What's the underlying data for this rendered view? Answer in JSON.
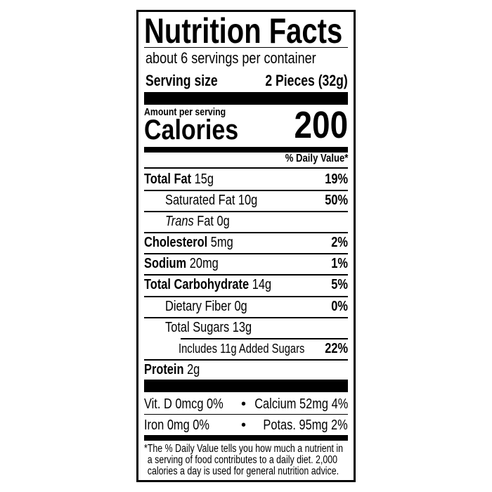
{
  "title": "Nutrition Facts",
  "servings_per_container": "about 6 servings per container",
  "serving_size": {
    "label": "Serving size",
    "value": "2 Pieces (32g)"
  },
  "amount_per_serving": "Amount per serving",
  "calories": {
    "label": "Calories",
    "value": "200"
  },
  "daily_value_header": "% Daily Value*",
  "nutrients": [
    {
      "name": "Total Fat",
      "amount": "15g",
      "dv": "19%"
    },
    {
      "name": "Saturated Fat",
      "amount": "10g",
      "dv": "50%"
    },
    {
      "name": "Trans",
      "name_suffix": "Fat",
      "amount": "0g",
      "dv": ""
    },
    {
      "name": "Cholesterol",
      "amount": "5mg",
      "dv": "2%"
    },
    {
      "name": "Sodium",
      "amount": "20mg",
      "dv": "1%"
    },
    {
      "name": "Total Carbohydrate",
      "amount": "14g",
      "dv": "5%"
    },
    {
      "name": "Dietary Fiber",
      "amount": "0g",
      "dv": "0%"
    },
    {
      "name": "Total Sugars",
      "amount": "13g",
      "dv": ""
    },
    {
      "name": "Includes 11g Added Sugars",
      "amount": "",
      "dv": "22%"
    },
    {
      "name": "Protein",
      "amount": "2g",
      "dv": ""
    }
  ],
  "micronutrients": [
    {
      "left": "Vit. D 0mcg 0%",
      "right": "Calcium 52mg 4%"
    },
    {
      "left": "Iron 0mg 0%",
      "right": "Potas. 95mg 2%"
    }
  ],
  "bullet": "•",
  "footnote": [
    "*The % Daily Value tells you how much a nutrient in",
    "a serving of food contributes to a daily diet. 2,000",
    "calories a day is used for general nutrition advice."
  ]
}
